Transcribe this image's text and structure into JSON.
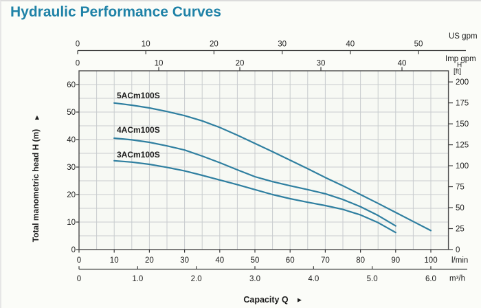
{
  "title": "Hydraulic Performance Curves",
  "icons": {
    "up_arrow": "▲",
    "right_arrow": "►"
  },
  "colors": {
    "title": "#1f82a7",
    "curve": "#2f7fa0",
    "grid": "#c8ccce",
    "frame": "#4a4a4a",
    "axis": "#3a3a3a",
    "text": "#1c1c1c",
    "plot_bg": "#f7f9f4",
    "page_bg": "#fbfcf8"
  },
  "chart_data": {
    "type": "line",
    "title": "Hydraulic Performance Curves",
    "xlabel": "Capacity Q",
    "ylabel": "Total manometric head H (m)",
    "grid": true,
    "legend_position": "inline-curve-labels",
    "x_axes": [
      {
        "id": "us_gpm",
        "label": "US gpm",
        "position": "top-outer",
        "ticks": [
          0,
          10,
          20,
          30,
          40,
          50
        ]
      },
      {
        "id": "imp_gpm",
        "label": "Imp gpm",
        "position": "top-inner",
        "ticks": [
          0,
          10,
          20,
          30,
          40
        ]
      },
      {
        "id": "l_min",
        "label": "l/min",
        "position": "bottom-inner",
        "ticks": [
          0,
          10,
          20,
          30,
          40,
          50,
          60,
          70,
          80,
          90,
          100
        ],
        "range": [
          0,
          105
        ]
      },
      {
        "id": "m3_h",
        "label": "m³/h",
        "position": "bottom-outer",
        "tick_labels": [
          "0",
          "1.0",
          "2.0",
          "3.0",
          "4.0",
          "5.0",
          "6.0"
        ],
        "ticks": [
          0,
          1,
          2,
          3,
          4,
          5,
          6
        ]
      }
    ],
    "y_axes": [
      {
        "id": "h_m",
        "label": "Total manometric head H (m)",
        "position": "left",
        "ticks": [
          0,
          10,
          20,
          30,
          40,
          50,
          60
        ],
        "range": [
          0,
          65
        ]
      },
      {
        "id": "h_ft",
        "label_top": "H",
        "label_bottom": "[ft]",
        "position": "right",
        "ticks": [
          0,
          25,
          50,
          75,
          100,
          125,
          150,
          175,
          200
        ]
      }
    ],
    "series": [
      {
        "name": "5ACm100S",
        "x_l_min": [
          10,
          15,
          20,
          25,
          30,
          35,
          40,
          45,
          50,
          55,
          60,
          65,
          70,
          75,
          80,
          85,
          90,
          95,
          100
        ],
        "y_m": [
          53.3,
          52.5,
          51.5,
          50.2,
          48.7,
          46.8,
          44.4,
          41.6,
          38.6,
          35.6,
          32.5,
          29.4,
          26.2,
          23.2,
          20.0,
          16.8,
          13.5,
          10.2,
          6.9
        ]
      },
      {
        "name": "4ACm100S",
        "x_l_min": [
          10,
          15,
          20,
          25,
          30,
          35,
          40,
          45,
          50,
          55,
          60,
          65,
          70,
          75,
          80,
          85,
          90
        ],
        "y_m": [
          40.5,
          39.9,
          39.0,
          37.7,
          36.2,
          34.0,
          31.6,
          29.0,
          26.5,
          24.7,
          23.2,
          21.8,
          20.3,
          18.2,
          15.6,
          12.4,
          8.6
        ]
      },
      {
        "name": "3ACm100S",
        "x_l_min": [
          10,
          15,
          20,
          25,
          30,
          35,
          40,
          45,
          50,
          55,
          60,
          65,
          70,
          75,
          80,
          85,
          90
        ],
        "y_m": [
          32.3,
          31.8,
          31.0,
          29.9,
          28.6,
          27.0,
          25.3,
          23.6,
          21.8,
          20.0,
          18.5,
          17.2,
          16.0,
          14.6,
          12.6,
          9.8,
          6.2
        ]
      }
    ]
  }
}
